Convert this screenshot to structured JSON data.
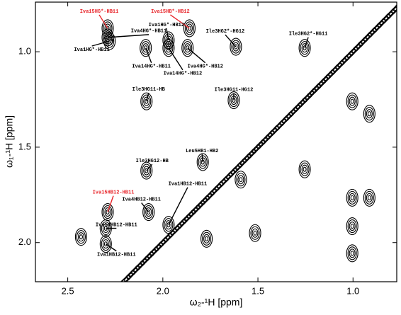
{
  "chart_data": {
    "type": "nmr-2d",
    "xlabel": "ω₂-¹H [ppm]",
    "ylabel": "ω₁-¹H [ppm]",
    "xlim": [
      2.67,
      0.77
    ],
    "ylim": [
      0.74,
      2.205
    ],
    "xticks": [
      2.5,
      {
        "value": 2,
        "label": "2.0"
      },
      1.5,
      {
        "value": 1,
        "label": "1.0"
      }
    ],
    "yticks": [
      {
        "value": 1,
        "label": "1.0"
      },
      1.5,
      {
        "value": 2,
        "label": "2.0"
      }
    ],
    "annotations": [
      {
        "label": "Iva15HG*-HB11",
        "x": 2.29,
        "y": 0.877,
        "color": "#e8262b"
      },
      {
        "label": "Iva15HB*-HB12",
        "x": 1.86,
        "y": 0.877,
        "color": "#e8262b"
      },
      {
        "label": "Iva4HG*-HB11",
        "x": 2.29,
        "y": 0.925,
        "color": "#000000"
      },
      {
        "label": "Iva1HG*-HB12",
        "x": 1.97,
        "y": 0.94,
        "color": "#000000"
      },
      {
        "label": "Ile3HG2*-HG12",
        "x": 1.616,
        "y": 0.974,
        "color": "#000000"
      },
      {
        "label": "Ile3HG2*-HG11",
        "x": 1.254,
        "y": 0.98,
        "color": "#000000"
      },
      {
        "label": "Iva1HG*-HB11",
        "x": 2.28,
        "y": 0.944,
        "color": "#000000"
      },
      {
        "label": "Iva14HG*-HB11",
        "x": 2.09,
        "y": 0.98,
        "color": "#000000"
      },
      {
        "label": "Iva14HG*-HB12",
        "x": 1.97,
        "y": 0.98,
        "color": "#000000"
      },
      {
        "label": "Iva4HG*-HB12",
        "x": 1.87,
        "y": 0.98,
        "color": "#000000"
      },
      {
        "label": "Ile3HG11-HB",
        "x": 2.086,
        "y": 1.26,
        "color": "#000000"
      },
      {
        "label": "Ile3HG11-HG12",
        "x": 1.627,
        "y": 1.254,
        "color": "#000000"
      },
      {
        "label": "Leu5HB1-HB2",
        "x": 1.79,
        "y": 1.578,
        "color": "#000000"
      },
      {
        "label": "Ile3HG12-HB",
        "x": 2.086,
        "y": 1.623,
        "color": "#000000"
      },
      {
        "label": "Iva15HB12-HB11",
        "x": 2.29,
        "y": 1.84,
        "color": "#e8262b"
      },
      {
        "label": "Iva1HB12-HB11",
        "x": 1.97,
        "y": 1.907,
        "color": "#000000"
      },
      {
        "label": "Iva4HB12-HB11",
        "x": 2.075,
        "y": 1.84,
        "color": "#000000"
      },
      {
        "label": "Iva14HB12-HB11",
        "x": 2.3,
        "y": 1.925,
        "color": "#000000"
      },
      {
        "label": "Iva1HB12-HB11",
        "x": 2.3,
        "y": 2.007,
        "color": "#000000"
      }
    ],
    "peaks": {
      "x": [
        1.004,
        0.914,
        1.254,
        1.004,
        0.914,
        1.004,
        1.004,
        2.43,
        1.59,
        1.77,
        1.515
      ],
      "y": [
        1.26,
        1.325,
        1.616,
        1.765,
        1.765,
        1.914,
        2.056,
        1.97,
        1.67,
        1.98,
        1.95
      ]
    }
  }
}
